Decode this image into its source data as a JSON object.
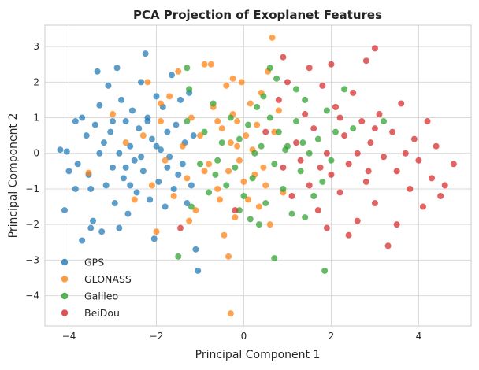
{
  "chart_data": {
    "type": "scatter",
    "title": "PCA Projection of Exoplanet Features",
    "xlabel": "Principal Component 1",
    "ylabel": "Principal Component 2",
    "xlim": [
      -4.55,
      5.2
    ],
    "ylim": [
      -4.85,
      3.6
    ],
    "xticks": [
      -4,
      -2,
      0,
      2,
      4
    ],
    "yticks": [
      -4,
      -3,
      -2,
      -1,
      0,
      1,
      2,
      3
    ],
    "grid": true,
    "legend_position": "lower-left",
    "series": [
      {
        "name": "GPS",
        "color": "#1f77b4",
        "points": [
          [
            -4.2,
            0.1
          ],
          [
            -4.05,
            0.05
          ],
          [
            -4.0,
            -0.5
          ],
          [
            -4.1,
            -1.6
          ],
          [
            -3.85,
            0.9
          ],
          [
            -3.8,
            -0.3
          ],
          [
            -3.7,
            1.0
          ],
          [
            -3.6,
            0.5
          ],
          [
            -3.55,
            -0.6
          ],
          [
            -3.5,
            -1.0
          ],
          [
            -3.45,
            -1.9
          ],
          [
            -3.4,
            0.8
          ],
          [
            -3.35,
            2.3
          ],
          [
            -3.3,
            1.35
          ],
          [
            -3.25,
            -2.2
          ],
          [
            -3.2,
            0.3
          ],
          [
            -3.15,
            -0.9
          ],
          [
            -3.1,
            1.9
          ],
          [
            -3.05,
            0.6
          ],
          [
            -3.0,
            -0.4
          ],
          [
            -2.95,
            -1.4
          ],
          [
            -2.9,
            2.4
          ],
          [
            -2.85,
            0.0
          ],
          [
            -2.8,
            1.5
          ],
          [
            -2.75,
            -0.7
          ],
          [
            -2.7,
            0.9
          ],
          [
            -2.65,
            -1.7
          ],
          [
            -2.6,
            0.2
          ],
          [
            -2.55,
            1.2
          ],
          [
            -2.5,
            -0.2
          ],
          [
            -2.45,
            -1.1
          ],
          [
            -2.4,
            0.7
          ],
          [
            -2.35,
            2.0
          ],
          [
            -2.3,
            -0.5
          ],
          [
            -2.25,
            2.8
          ],
          [
            -2.2,
            1.0
          ],
          [
            -2.15,
            -1.3
          ],
          [
            -2.1,
            0.4
          ],
          [
            -2.05,
            -2.4
          ],
          [
            -2.0,
            1.6
          ],
          [
            -1.95,
            -0.8
          ],
          [
            -1.9,
            0.1
          ],
          [
            -1.85,
            1.3
          ],
          [
            -1.8,
            -1.5
          ],
          [
            -1.75,
            0.6
          ],
          [
            -1.7,
            -0.1
          ],
          [
            -1.65,
            2.2
          ],
          [
            -1.6,
            -1.0
          ],
          [
            -1.55,
            0.8
          ],
          [
            -1.5,
            -0.6
          ],
          [
            -1.45,
            1.5
          ],
          [
            -1.4,
            -0.3
          ],
          [
            -1.35,
            0.3
          ],
          [
            -1.3,
            -1.4
          ],
          [
            -1.25,
            1.7
          ],
          [
            -1.2,
            -0.9
          ],
          [
            -1.15,
            0.5
          ],
          [
            -1.1,
            -2.7
          ],
          [
            -1.05,
            -3.3
          ],
          [
            -3.7,
            -2.45
          ],
          [
            -3.5,
            -2.1
          ],
          [
            -2.85,
            -2.1
          ],
          [
            -3.3,
            0.0
          ],
          [
            -2.6,
            -0.9
          ],
          [
            -2.35,
            -0.1
          ],
          [
            -2.0,
            0.2
          ],
          [
            -1.75,
            -0.4
          ],
          [
            -3.0,
            0.9
          ],
          [
            -2.7,
            -0.4
          ],
          [
            -2.2,
            0.9
          ],
          [
            -3.85,
            -1.0
          ]
        ]
      },
      {
        "name": "GLONASS",
        "color": "#ff7f0e",
        "points": [
          [
            -3.55,
            -0.55
          ],
          [
            -3.0,
            1.1
          ],
          [
            -2.7,
            0.3
          ],
          [
            -2.5,
            -1.3
          ],
          [
            -2.2,
            2.0
          ],
          [
            -2.0,
            -2.2
          ],
          [
            -1.9,
            0.9
          ],
          [
            -1.8,
            -0.2
          ],
          [
            -1.7,
            1.6
          ],
          [
            -1.6,
            -1.2
          ],
          [
            -1.5,
            2.3
          ],
          [
            -1.4,
            0.2
          ],
          [
            -1.3,
            -0.7
          ],
          [
            -1.2,
            1.0
          ],
          [
            -1.1,
            -1.6
          ],
          [
            -1.0,
            0.5
          ],
          [
            -0.9,
            2.5
          ],
          [
            -0.8,
            -0.3
          ],
          [
            -0.7,
            1.3
          ],
          [
            -0.6,
            -1.0
          ],
          [
            -0.5,
            0.7
          ],
          [
            -0.45,
            -2.3
          ],
          [
            -0.4,
            1.9
          ],
          [
            -0.35,
            -0.5
          ],
          [
            -0.3,
            0.3
          ],
          [
            -0.25,
            1.1
          ],
          [
            -0.2,
            -1.8
          ],
          [
            -0.15,
            0.9
          ],
          [
            -0.1,
            -0.2
          ],
          [
            -0.05,
            2.0
          ],
          [
            0.0,
            -0.8
          ],
          [
            0.05,
            0.5
          ],
          [
            0.1,
            -1.3
          ],
          [
            0.15,
            1.4
          ],
          [
            0.2,
            0.1
          ],
          [
            0.25,
            -0.6
          ],
          [
            0.3,
            0.8
          ],
          [
            0.35,
            -1.5
          ],
          [
            0.4,
            1.7
          ],
          [
            0.45,
            -0.4
          ],
          [
            0.55,
            2.3
          ],
          [
            0.6,
            -2.0
          ],
          [
            0.65,
            3.25
          ],
          [
            0.7,
            0.6
          ],
          [
            0.8,
            1.2
          ],
          [
            0.9,
            -1.1
          ],
          [
            -0.3,
            -4.5
          ],
          [
            -0.35,
            -2.9
          ],
          [
            -0.25,
            2.1
          ],
          [
            -1.9,
            1.4
          ],
          [
            -2.3,
            0.5
          ],
          [
            -2.1,
            -0.9
          ],
          [
            -0.9,
            -0.5
          ],
          [
            -0.6,
            0.9
          ],
          [
            -1.25,
            -1.9
          ],
          [
            -0.75,
            2.5
          ],
          [
            0.5,
            -0.9
          ],
          [
            -0.15,
            0.2
          ],
          [
            -0.55,
            -1.3
          ]
        ]
      },
      {
        "name": "Galileo",
        "color": "#2ca02c",
        "points": [
          [
            -1.5,
            -2.9
          ],
          [
            -1.3,
            0.9
          ],
          [
            -1.25,
            1.8
          ],
          [
            -1.2,
            -1.5
          ],
          [
            -1.3,
            2.4
          ],
          [
            -1.0,
            -0.3
          ],
          [
            -0.9,
            0.6
          ],
          [
            -0.8,
            -1.1
          ],
          [
            -0.7,
            1.4
          ],
          [
            -0.6,
            -0.2
          ],
          [
            -0.5,
            0.3
          ],
          [
            -0.4,
            -0.9
          ],
          [
            -0.3,
            1.0
          ],
          [
            -0.2,
            -0.4
          ],
          [
            -0.1,
            0.4
          ],
          [
            0.0,
            -1.2
          ],
          [
            0.1,
            0.8
          ],
          [
            0.2,
            -0.7
          ],
          [
            0.3,
            1.3
          ],
          [
            0.35,
            -2.0
          ],
          [
            0.4,
            0.2
          ],
          [
            0.5,
            -1.4
          ],
          [
            0.6,
            1.0
          ],
          [
            0.7,
            -0.3
          ],
          [
            0.75,
            2.1
          ],
          [
            0.8,
            0.6
          ],
          [
            0.9,
            -1.0
          ],
          [
            1.0,
            0.2
          ],
          [
            1.1,
            -1.7
          ],
          [
            1.2,
            0.9
          ],
          [
            1.3,
            -0.5
          ],
          [
            1.4,
            1.5
          ],
          [
            1.5,
            0.0
          ],
          [
            1.6,
            -1.2
          ],
          [
            1.7,
            0.4
          ],
          [
            1.8,
            -0.8
          ],
          [
            1.85,
            -3.3
          ],
          [
            1.9,
            1.2
          ],
          [
            2.0,
            -0.2
          ],
          [
            2.1,
            0.6
          ],
          [
            2.3,
            1.8
          ],
          [
            2.5,
            0.7
          ],
          [
            3.2,
            0.9
          ],
          [
            0.7,
            -2.95
          ],
          [
            0.15,
            -1.85
          ],
          [
            0.6,
            2.4
          ],
          [
            1.2,
            1.8
          ],
          [
            1.4,
            -1.8
          ],
          [
            -0.1,
            -1.6
          ],
          [
            0.25,
            0.0
          ],
          [
            0.95,
            0.1
          ],
          [
            -0.65,
            -0.6
          ],
          [
            0.45,
            1.6
          ],
          [
            1.35,
            0.3
          ]
        ]
      },
      {
        "name": "BeiDou",
        "color": "#d62728",
        "points": [
          [
            -1.45,
            -2.1
          ],
          [
            -0.2,
            -1.6
          ],
          [
            0.5,
            0.6
          ],
          [
            0.8,
            1.5
          ],
          [
            0.9,
            -0.4
          ],
          [
            1.0,
            2.0
          ],
          [
            1.1,
            -1.2
          ],
          [
            1.2,
            0.3
          ],
          [
            1.3,
            -0.2
          ],
          [
            1.4,
            1.1
          ],
          [
            1.5,
            -0.9
          ],
          [
            1.6,
            0.7
          ],
          [
            1.7,
            -1.6
          ],
          [
            1.8,
            1.9
          ],
          [
            1.9,
            0.0
          ],
          [
            2.0,
            -0.6
          ],
          [
            2.1,
            1.3
          ],
          [
            2.2,
            -1.1
          ],
          [
            2.3,
            0.5
          ],
          [
            2.4,
            -0.3
          ],
          [
            2.5,
            1.7
          ],
          [
            2.6,
            -1.9
          ],
          [
            2.7,
            0.9
          ],
          [
            2.8,
            -0.8
          ],
          [
            2.9,
            0.3
          ],
          [
            3.0,
            -1.4
          ],
          [
            3.0,
            2.95
          ],
          [
            3.1,
            1.1
          ],
          [
            3.2,
            -0.1
          ],
          [
            3.3,
            -2.6
          ],
          [
            3.4,
            0.6
          ],
          [
            3.5,
            -0.5
          ],
          [
            3.6,
            1.4
          ],
          [
            3.7,
            0.0
          ],
          [
            3.8,
            -1.0
          ],
          [
            3.9,
            0.4
          ],
          [
            4.0,
            -0.2
          ],
          [
            4.1,
            -1.5
          ],
          [
            4.2,
            0.9
          ],
          [
            4.3,
            -0.7
          ],
          [
            4.4,
            0.2
          ],
          [
            4.5,
            -1.2
          ],
          [
            4.6,
            -0.9
          ],
          [
            4.8,
            -0.3
          ],
          [
            2.0,
            2.5
          ],
          [
            2.8,
            2.6
          ],
          [
            2.4,
            -2.3
          ],
          [
            1.9,
            -2.1
          ],
          [
            3.5,
            -2.0
          ],
          [
            1.5,
            2.4
          ],
          [
            0.9,
            2.7
          ],
          [
            2.6,
            0.0
          ],
          [
            2.2,
            1.0
          ],
          [
            3.0,
            0.7
          ],
          [
            1.75,
            -0.4
          ],
          [
            2.85,
            -0.5
          ]
        ]
      }
    ]
  }
}
